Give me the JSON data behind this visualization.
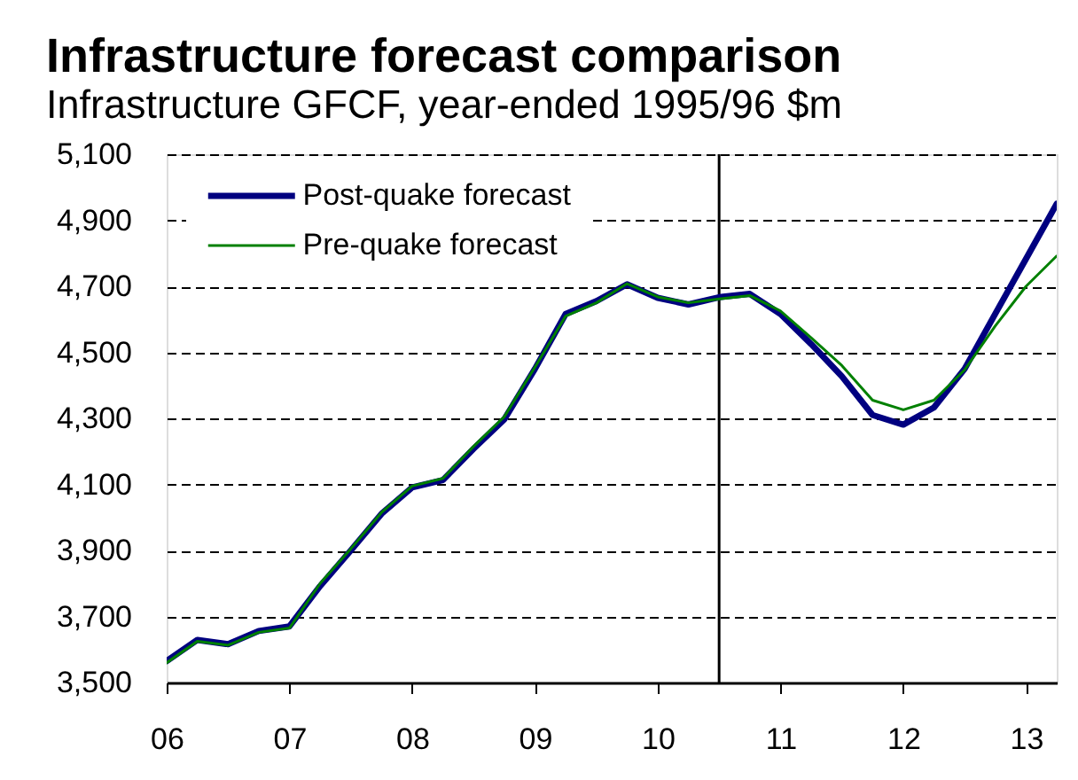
{
  "chart_data": {
    "type": "line",
    "title": "Infrastructure forecast comparison",
    "subtitle": "Infrastructure GFCF, year-ended 1995/96 $m",
    "x": [
      2006,
      2006.25,
      2006.5,
      2006.75,
      2007,
      2007.25,
      2007.5,
      2007.75,
      2008,
      2008.25,
      2008.5,
      2008.75,
      2009,
      2009.25,
      2009.5,
      2009.75,
      2010,
      2010.25,
      2010.5,
      2010.75,
      2011,
      2011.25,
      2011.5,
      2011.75,
      2012,
      2012.25,
      2012.5,
      2012.75,
      2013,
      2013.25
    ],
    "xlim": [
      2006,
      2013.25
    ],
    "xticks": [
      {
        "value": 2006,
        "label": "06"
      },
      {
        "value": 2007,
        "label": "07"
      },
      {
        "value": 2008,
        "label": "08"
      },
      {
        "value": 2009,
        "label": "09"
      },
      {
        "value": 2010,
        "label": "10"
      },
      {
        "value": 2011,
        "label": "11"
      },
      {
        "value": 2012,
        "label": "12"
      },
      {
        "value": 2013,
        "label": "13"
      }
    ],
    "ylim": [
      3500,
      5100
    ],
    "yticks": [
      {
        "value": 3500,
        "label": "3,500"
      },
      {
        "value": 3700,
        "label": "3,700"
      },
      {
        "value": 3900,
        "label": "3,900"
      },
      {
        "value": 4100,
        "label": "4,100"
      },
      {
        "value": 4300,
        "label": "4,300"
      },
      {
        "value": 4500,
        "label": "4,500"
      },
      {
        "value": 4700,
        "label": "4,700"
      },
      {
        "value": 4900,
        "label": "4,900"
      },
      {
        "value": 5100,
        "label": "5,100"
      }
    ],
    "series": [
      {
        "name": "Post-quake forecast",
        "color": "#000080",
        "values": [
          3565,
          3629,
          3616,
          3656,
          3670,
          3792,
          3900,
          4011,
          4091,
          4113,
          4208,
          4297,
          4450,
          4616,
          4655,
          4706,
          4665,
          4645,
          4667,
          4677,
          4616,
          4525,
          4427,
          4310,
          4281,
          4333,
          4450,
          4617,
          4783,
          4950
        ]
      },
      {
        "name": "Pre-quake forecast",
        "color": "#008000",
        "values": [
          3560,
          3625,
          3613,
          3652,
          3665,
          3800,
          3905,
          4015,
          4095,
          4118,
          4215,
          4305,
          4455,
          4610,
          4650,
          4708,
          4668,
          4650,
          4662,
          4672,
          4625,
          4544,
          4460,
          4355,
          4326,
          4355,
          4447,
          4580,
          4700,
          4792
        ]
      }
    ],
    "ref_lines": [
      {
        "axis": "x",
        "value": 2010.5,
        "color": "#000000"
      }
    ],
    "grid": "y",
    "legend": "top left"
  }
}
